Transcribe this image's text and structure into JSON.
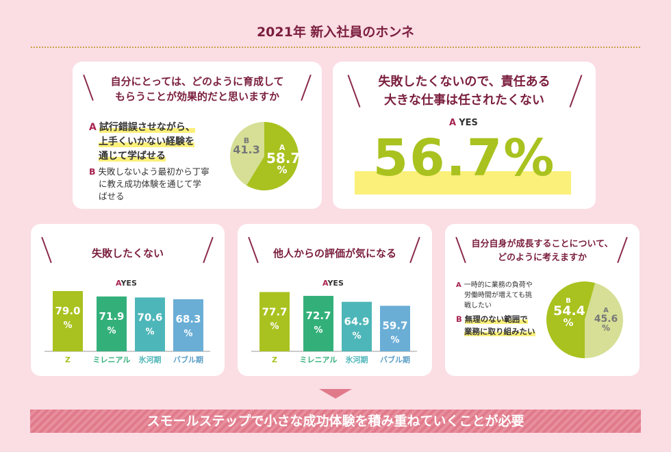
{
  "title": "2021年 新入社員のホンネ",
  "q1": {
    "line1": "自分にとっては、どのように育成して",
    "line2": "もらうことが効果的だと思いますか",
    "optA_letter": "A",
    "optA_l1": "試行錯誤させながら、",
    "optA_l2": "上手くいかない経験を",
    "optA_l3": "通じて学ばせる",
    "optB_letter": "B",
    "optB_l1": "失敗しないよう最初から丁寧",
    "optB_l2": "に教え成功体験を通じて学",
    "optB_l3": "ばせる",
    "a_letter": "A",
    "a_value": "58.7",
    "a_pct": "%",
    "b_letter": "B",
    "b_value": "41.3"
  },
  "q2": {
    "line1": "失敗したくないので、責任ある",
    "line2": "大きな仕事は任されたくない",
    "yes_letter": "A",
    "yes_label": "YES",
    "value": "56.7%"
  },
  "q3": {
    "heading": "失敗したくない",
    "yes_letter": "A",
    "yes_label": "YES"
  },
  "q4": {
    "heading": "他人からの評価が気になる",
    "yes_letter": "A",
    "yes_label": "YES"
  },
  "q5": {
    "line1": "自分自身が成長することについて、",
    "line2": "どのように考えますか",
    "optA_letter": "A",
    "optA_l1": "一時的に業務の負荷や",
    "optA_l2": "労働時間が増えても挑",
    "optA_l3": "戦したい",
    "optB_letter": "B",
    "optB_l1": "無理のない範囲で",
    "optB_l2": "業務に取り組みたい",
    "b_letter": "B",
    "b_value": "54.4",
    "b_pct": "%",
    "a_letter": "A",
    "a_value": "45.6",
    "a_pct": "%"
  },
  "bottom": "スモールステップで小さな成功体験を積み重ねていくことが必要",
  "colors": {
    "green": "#a9c21f",
    "lightgreen": "#d6df95",
    "teal1": "#33b07a",
    "teal2": "#4db6b8",
    "blue": "#6aaed6",
    "accent": "#7a1e3e",
    "highlight": "#fbf07a"
  },
  "chart_data": [
    {
      "type": "pie",
      "title": "自分にとっては、どのように育成してもらうことが効果的だと思いますか",
      "slices": [
        {
          "name": "A",
          "value": 58.7
        },
        {
          "name": "B",
          "value": 41.3
        }
      ]
    },
    {
      "type": "bar",
      "title": "失敗したくない",
      "categories": [
        "Z",
        "ミレニアル",
        "氷河期",
        "バブル期"
      ],
      "series": [
        {
          "name": "YES",
          "values": [
            79.0,
            71.9,
            70.6,
            68.3
          ]
        }
      ],
      "labels": [
        [
          "79.0",
          "%"
        ],
        [
          "71.9",
          "%"
        ],
        [
          "70.6",
          "%"
        ],
        [
          "68.3",
          "%"
        ]
      ]
    },
    {
      "type": "bar",
      "title": "他人からの評価が気になる",
      "categories": [
        "Z",
        "ミレニアル",
        "氷河期",
        "バブル期"
      ],
      "series": [
        {
          "name": "YES",
          "values": [
            77.7,
            72.7,
            64.9,
            59.7
          ]
        }
      ],
      "labels": [
        [
          "77.7",
          "%"
        ],
        [
          "72.7",
          "%"
        ],
        [
          "64.9",
          "%"
        ],
        [
          "59.7",
          "%"
        ]
      ]
    },
    {
      "type": "pie",
      "title": "自分自身が成長することについて、どのように考えますか",
      "slices": [
        {
          "name": "B",
          "value": 54.4
        },
        {
          "name": "A",
          "value": 45.6
        }
      ]
    }
  ]
}
